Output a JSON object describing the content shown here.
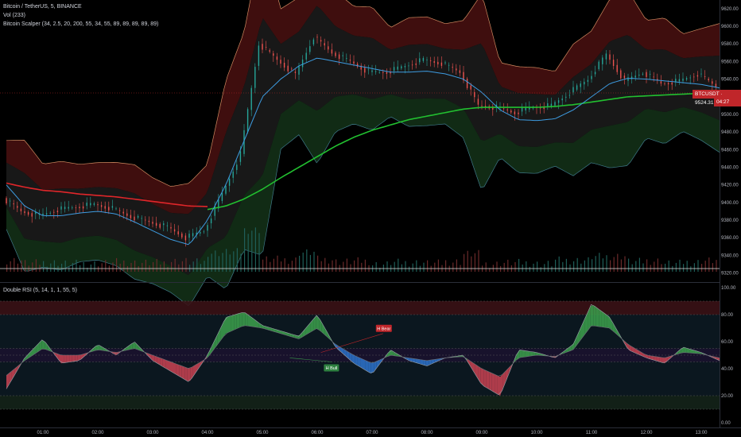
{
  "header": {
    "symbol_line": "Bitcoin / TetherUS, 5, BINANCE",
    "volume_line": "Vol (233)",
    "indicator_line": "Bitcoin Scalper (34, 2.5, 20, 200, 55, 34, 55, 89, 89, 89, 89, 89)",
    "rsi_line": "Double RSI (5, 14, 1, 1, 55, 5)"
  },
  "price_tag": {
    "label": "BTCUSDT · 9524.31",
    "countdown": "04:27"
  },
  "colors": {
    "background": "#000000",
    "up_candle": "#26a69a",
    "down_candle": "#ef5350",
    "ema200": "#22c030",
    "red_trend": "#e0262a",
    "basis": "#3d9be0",
    "rsi_bull_fill": "#3a9a4a",
    "rsi_bear_fill": "#c04050",
    "rsi_blue_fill": "#2b6fc4"
  },
  "axes": {
    "price_ticks": [
      "9620.00",
      "9600.00",
      "9580.00",
      "9560.00",
      "9540.00",
      "9520.00",
      "9500.00",
      "9480.00",
      "9460.00",
      "9440.00",
      "9420.00",
      "9400.00",
      "9380.00",
      "9360.00",
      "9340.00",
      "9320.00"
    ],
    "rsi_ticks": [
      "100.00",
      "80.00",
      "60.00",
      "40.00",
      "20.00",
      "0.00"
    ],
    "time_ticks": [
      "01:00",
      "02:00",
      "03:00",
      "04:00",
      "05:00",
      "06:00",
      "07:00",
      "08:00",
      "09:00",
      "10:00",
      "11:00",
      "12:00",
      "13:00"
    ]
  },
  "rsi_labels": {
    "bear": "H Bear",
    "bull": "H Bull"
  },
  "chart_data": [
    {
      "type": "line",
      "title": "Bitcoin / TetherUS, 5, BINANCE",
      "x": [
        "00:20",
        "00:40",
        "01:00",
        "01:20",
        "01:40",
        "02:00",
        "02:20",
        "02:40",
        "03:00",
        "03:20",
        "03:40",
        "04:00",
        "04:20",
        "04:40",
        "05:00",
        "05:20",
        "05:40",
        "06:00",
        "06:20",
        "06:40",
        "07:00",
        "07:20",
        "07:40",
        "08:00",
        "08:20",
        "08:40",
        "09:00",
        "09:20",
        "09:40",
        "10:00",
        "10:20",
        "10:40",
        "11:00",
        "11:20",
        "11:40",
        "12:00",
        "12:20",
        "12:40",
        "13:00",
        "13:20"
      ],
      "series": [
        {
          "name": "price",
          "values": [
            9405,
            9390,
            9385,
            9392,
            9395,
            9398,
            9393,
            9384,
            9378,
            9372,
            9360,
            9368,
            9410,
            9455,
            9580,
            9562,
            9545,
            9588,
            9570,
            9560,
            9548,
            9548,
            9555,
            9562,
            9558,
            9548,
            9510,
            9508,
            9502,
            9508,
            9510,
            9525,
            9540,
            9568,
            9538,
            9548,
            9535,
            9538,
            9546,
            9532
          ]
        },
        {
          "name": "basis",
          "values": [
            9420,
            9396,
            9385,
            9385,
            9388,
            9390,
            9387,
            9378,
            9368,
            9358,
            9352,
            9380,
            9420,
            9470,
            9520,
            9540,
            9555,
            9564,
            9560,
            9556,
            9552,
            9548,
            9548,
            9549,
            9546,
            9540,
            9525,
            9505,
            9494,
            9493,
            9495,
            9505,
            9520,
            9535,
            9541,
            9540,
            9538,
            9536,
            9534,
            9530
          ]
        },
        {
          "name": "ema200",
          "values": [
            9412,
            9408,
            9405,
            9404,
            9402,
            9401,
            9400,
            9398,
            9396,
            9394,
            9392,
            9392,
            9396,
            9404,
            9415,
            9428,
            9440,
            9452,
            9464,
            9474,
            9482,
            9488,
            9494,
            9498,
            9502,
            9506,
            9508,
            9508,
            9508,
            9508,
            9509,
            9511,
            9514,
            9517,
            9520,
            9521,
            9522,
            9523,
            9524,
            9525
          ]
        }
      ],
      "ylim": [
        9316,
        9628
      ]
    },
    {
      "type": "area",
      "title": "Double RSI (5, 14, 1, 1, 55, 5)",
      "x": [
        "00:20",
        "00:40",
        "01:00",
        "01:20",
        "01:40",
        "02:00",
        "02:20",
        "02:40",
        "03:00",
        "03:20",
        "03:40",
        "04:00",
        "04:20",
        "04:40",
        "05:00",
        "05:20",
        "05:40",
        "06:00",
        "06:20",
        "06:40",
        "07:00",
        "07:20",
        "07:40",
        "08:00",
        "08:20",
        "08:40",
        "09:00",
        "09:20",
        "09:40",
        "10:00",
        "10:20",
        "10:40",
        "11:00",
        "11:20",
        "11:40",
        "12:00",
        "12:20",
        "12:40",
        "13:00",
        "13:20"
      ],
      "series": [
        {
          "name": "rsi_fast",
          "values": [
            25,
            48,
            62,
            44,
            46,
            58,
            50,
            60,
            46,
            38,
            30,
            50,
            78,
            82,
            72,
            68,
            64,
            80,
            56,
            44,
            36,
            54,
            46,
            42,
            48,
            50,
            28,
            20,
            54,
            52,
            48,
            58,
            88,
            78,
            54,
            48,
            44,
            56,
            52,
            46
          ]
        },
        {
          "name": "rsi_slow",
          "values": [
            35,
            46,
            55,
            50,
            50,
            54,
            52,
            55,
            50,
            45,
            40,
            48,
            66,
            72,
            70,
            66,
            62,
            70,
            58,
            50,
            44,
            50,
            48,
            46,
            48,
            49,
            40,
            34,
            48,
            50,
            49,
            54,
            72,
            70,
            58,
            50,
            48,
            52,
            51,
            48
          ]
        }
      ],
      "ylim": [
        0,
        100
      ]
    }
  ]
}
